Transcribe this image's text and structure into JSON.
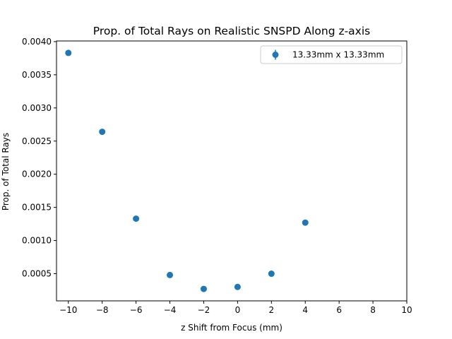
{
  "chart_data": {
    "type": "scatter",
    "title": "Prop. of Total Rays on Realistic SNSPD Along z-axis",
    "xlabel": "z Shift from Focus (mm)",
    "ylabel": "Prop. of Total Rays",
    "xlim": [
      -10.7,
      10
    ],
    "ylim": [
      9e-05,
      0.00401
    ],
    "x_ticks": [
      -10,
      -8,
      -6,
      -4,
      -2,
      0,
      2,
      4,
      6,
      8,
      10
    ],
    "y_ticks": [
      0.0005,
      0.001,
      0.0015,
      0.002,
      0.0025,
      0.003,
      0.0035,
      0.004
    ],
    "y_tick_labels": [
      "0.0005",
      "0.0010",
      "0.0015",
      "0.0020",
      "0.0025",
      "0.0030",
      "0.0035",
      "0.0040"
    ],
    "grid": false,
    "legend_position": "top-right",
    "series": [
      {
        "name": "13.33mm x 13.33mm",
        "color": "#1f77b4",
        "marker": "circle-with-errorbar",
        "x": [
          -10,
          -8,
          -6,
          -4,
          -2,
          0,
          2,
          4
        ],
        "y": [
          0.00383,
          0.00264,
          0.00133,
          0.00048,
          0.00027,
          0.0003,
          0.0005,
          0.00127
        ]
      }
    ]
  }
}
